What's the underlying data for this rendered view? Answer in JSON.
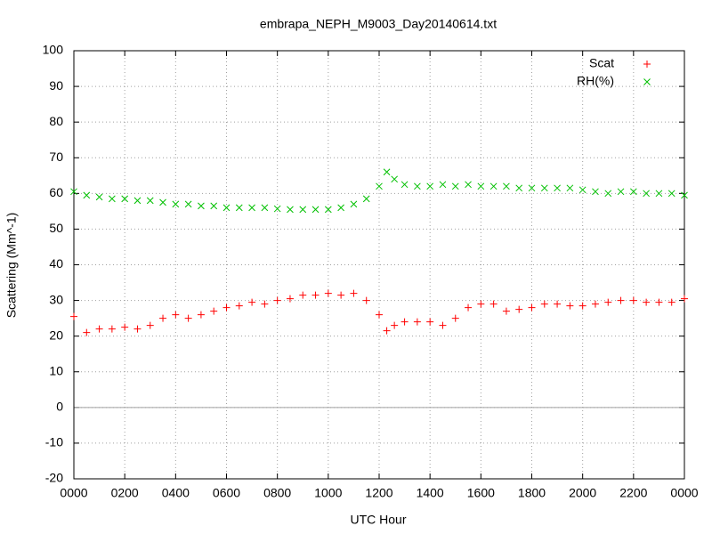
{
  "chart_data": {
    "type": "scatter",
    "title": "embrapa_NEPH_M9003_Day20140614.txt",
    "xlabel": "UTC Hour",
    "ylabel": "Scattering (Mm^-1)",
    "x": [
      0,
      0.5,
      1,
      1.5,
      2,
      2.5,
      3,
      3.5,
      4,
      4.5,
      5,
      5.5,
      6,
      6.5,
      7,
      7.5,
      8,
      8.5,
      9,
      9.5,
      10,
      10.5,
      11,
      11.5,
      12,
      12.3,
      12.6,
      13,
      13.5,
      14,
      14.5,
      15,
      15.5,
      16,
      16.5,
      17,
      17.5,
      18,
      18.5,
      19,
      19.5,
      20,
      20.5,
      21,
      21.5,
      22,
      22.5,
      23,
      23.5,
      24
    ],
    "series": [
      {
        "name": "Scat",
        "color": "#ff0000",
        "marker": "plus",
        "values": [
          25.5,
          21,
          22,
          22,
          22.5,
          22,
          23,
          25,
          26,
          25,
          26,
          27,
          28,
          28.5,
          29.5,
          29,
          30,
          30.5,
          31.5,
          31.5,
          32,
          31.5,
          32,
          30,
          26,
          21.5,
          23,
          24,
          24,
          24,
          23,
          25,
          28,
          29,
          29,
          27,
          27.5,
          28,
          29,
          29,
          28.5,
          28.5,
          29,
          29.5,
          30,
          30,
          29.5,
          29.5,
          29.5,
          30.5
        ]
      },
      {
        "name": "RH(%)",
        "color": "#00c000",
        "marker": "cross",
        "values": [
          60.5,
          59.5,
          59,
          58.5,
          58.5,
          58,
          58,
          57.5,
          57,
          57,
          56.5,
          56.5,
          56,
          56,
          56,
          56,
          55.7,
          55.5,
          55.5,
          55.5,
          55.5,
          56,
          57,
          58.5,
          62,
          66,
          64,
          62.5,
          62,
          62,
          62.5,
          62,
          62.5,
          62,
          62,
          62,
          61.5,
          61.5,
          61.5,
          61.5,
          61.5,
          61,
          60.5,
          60,
          60.5,
          60.5,
          60,
          60,
          60,
          59.5
        ]
      }
    ],
    "xlim": [
      0,
      24
    ],
    "xticks": [
      {
        "value": 0,
        "label": "0000"
      },
      {
        "value": 2,
        "label": "0200"
      },
      {
        "value": 4,
        "label": "0400"
      },
      {
        "value": 6,
        "label": "0600"
      },
      {
        "value": 8,
        "label": "0800"
      },
      {
        "value": 10,
        "label": "1000"
      },
      {
        "value": 12,
        "label": "1200"
      },
      {
        "value": 14,
        "label": "1400"
      },
      {
        "value": 16,
        "label": "1600"
      },
      {
        "value": 18,
        "label": "1800"
      },
      {
        "value": 20,
        "label": "2000"
      },
      {
        "value": 22,
        "label": "2200"
      },
      {
        "value": 24,
        "label": "0000"
      }
    ],
    "ylim": [
      -20,
      100
    ],
    "yticks": [
      -20,
      -10,
      0,
      10,
      20,
      30,
      40,
      50,
      60,
      70,
      80,
      90,
      100
    ],
    "grid": true,
    "zero_line": true,
    "legend": "top-right"
  }
}
